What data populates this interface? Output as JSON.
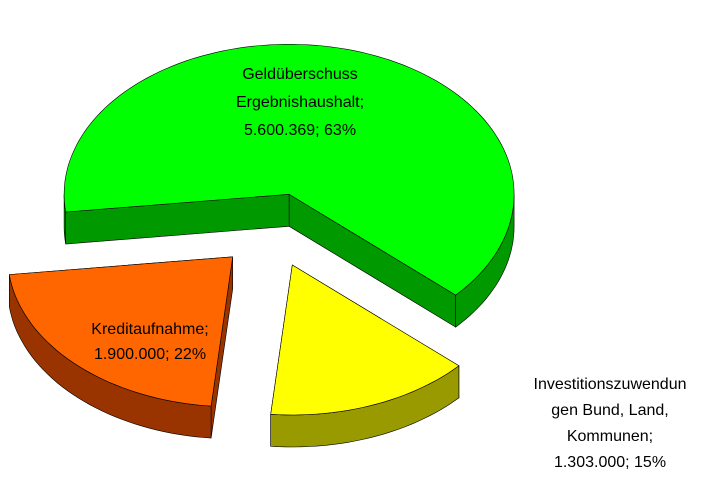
{
  "chart_data": {
    "type": "pie3d",
    "categories": [
      "Geldüberschuss Ergebnishaushalt",
      "Investitionszuwendungen Bund, Land, Kommunen",
      "Kreditaufnahme"
    ],
    "values": [
      5600369,
      1303000,
      1900000
    ],
    "percents": [
      63,
      15,
      22
    ],
    "data_labels": [
      [
        "Geldüberschuss",
        "Ergebnishaushalt;",
        "5.600.369; 63%"
      ],
      [
        "Investitionszuwendun",
        "gen Bund, Land,",
        "Kommunen;",
        "1.303.000; 15%"
      ],
      [
        "Kreditaufnahme;",
        "1.900.000; 22%"
      ]
    ],
    "colors": [
      "#00ff00",
      "#ffff00",
      "#ff6600"
    ],
    "side_colors": [
      "#009900",
      "#999900",
      "#993300"
    ]
  }
}
